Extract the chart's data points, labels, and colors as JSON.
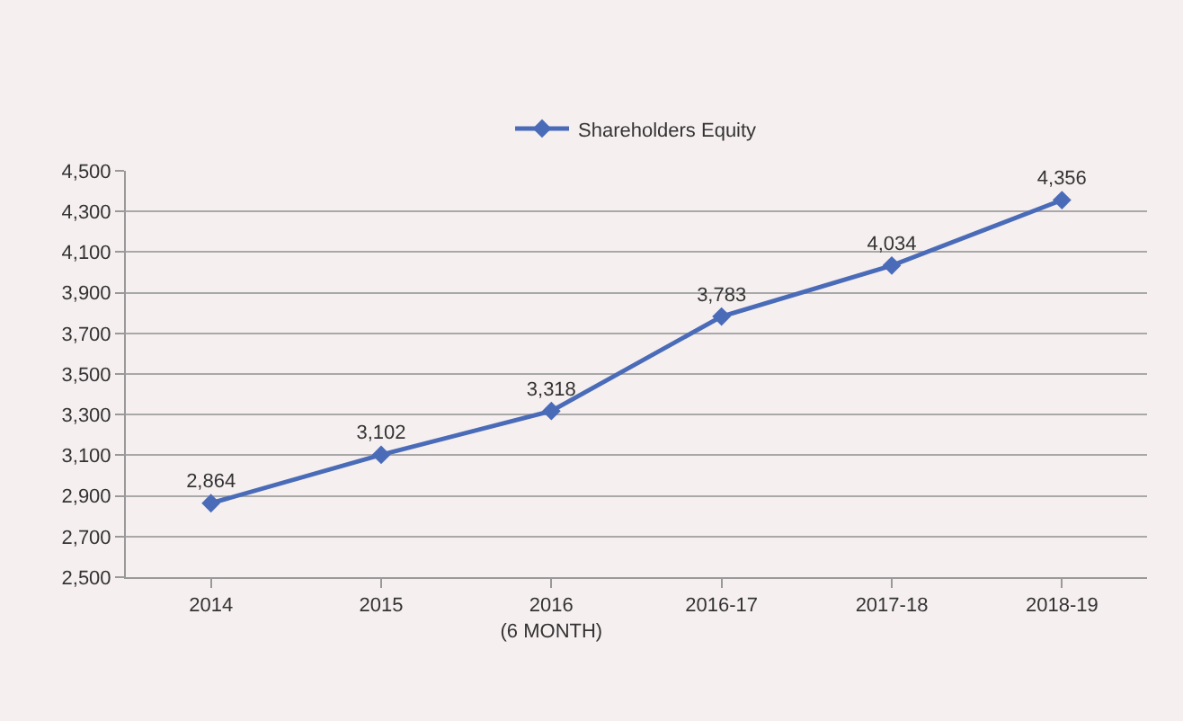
{
  "chart_data": {
    "type": "line",
    "categories": [
      "2014",
      "2015",
      "2016\n(6 MONTH)",
      "2016-17",
      "2017-18",
      "2018-19"
    ],
    "series": [
      {
        "name": "Shareholders Equity",
        "color": "#4a6cb8",
        "values": [
          2864,
          3102,
          3318,
          3783,
          4034,
          4356
        ],
        "value_labels": [
          "2,864",
          "3,102",
          "3,318",
          "3,783",
          "4,034",
          "4,356"
        ]
      }
    ],
    "ylim": [
      2500,
      4500
    ],
    "yticks": [
      {
        "value": 2500,
        "label": "2,500"
      },
      {
        "value": 2700,
        "label": "2,700"
      },
      {
        "value": 2900,
        "label": "2,900"
      },
      {
        "value": 3100,
        "label": "3,100"
      },
      {
        "value": 3300,
        "label": "3,300"
      },
      {
        "value": 3500,
        "label": "3,500"
      },
      {
        "value": 3700,
        "label": "3,700"
      },
      {
        "value": 3900,
        "label": "3,900"
      },
      {
        "value": 4100,
        "label": "4,100"
      },
      {
        "value": 4300,
        "label": "4,300"
      },
      {
        "value": 4500,
        "label": "4,500"
      }
    ],
    "grid": "y",
    "legend": "top",
    "marker": "diamond",
    "line_style": "solid"
  }
}
